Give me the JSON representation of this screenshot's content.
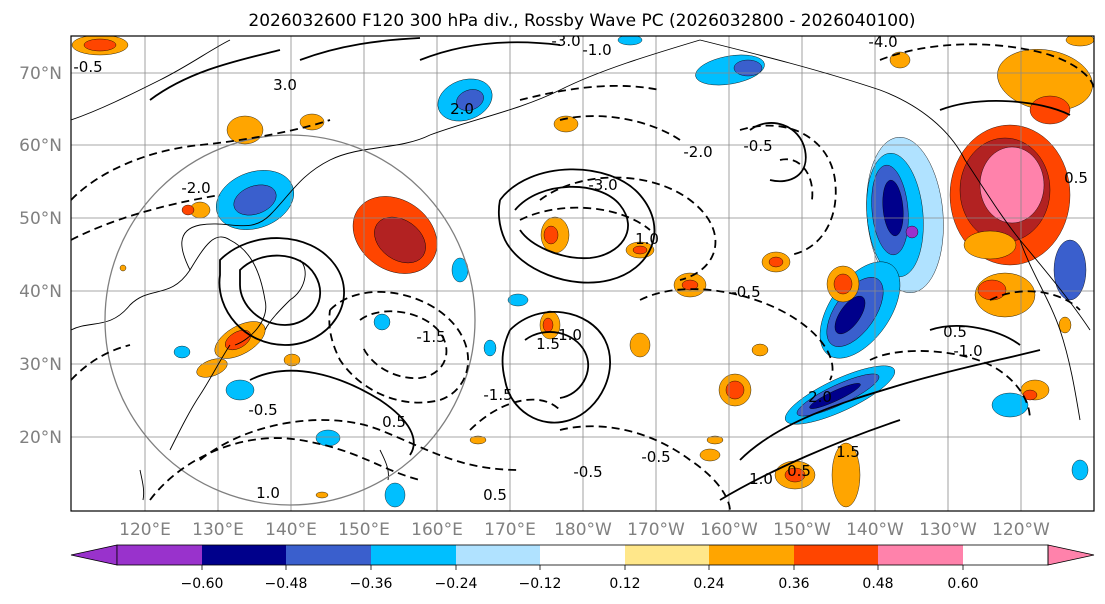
{
  "title": "2026032600 F120 300 hPa div., Rossby Wave PC (2026032800 - 2026040100)",
  "lat_labels": [
    "70°N",
    "60°N",
    "50°N",
    "40°N",
    "30°N",
    "20°N"
  ],
  "lon_labels": [
    "120°E",
    "130°E",
    "140°E",
    "150°E",
    "160°E",
    "170°E",
    "180°W",
    "170°W",
    "160°W",
    "150°W",
    "140°W",
    "130°W",
    "120°W"
  ],
  "colorbar": {
    "ticks": [
      "−0.60",
      "−0.48",
      "−0.36",
      "−0.24",
      "−0.12",
      "0.12",
      "0.24",
      "0.36",
      "0.48",
      "0.60"
    ],
    "colors": [
      "#9932cc",
      "#00008b",
      "#3a5fcd",
      "#00bfff",
      "#b0e2ff",
      "#ffffff",
      "#ffe78a",
      "#ffa500",
      "#ff4500",
      "#b22222",
      "#ff82ab"
    ]
  },
  "contour_labels": {
    "neg": [
      "-3.0",
      "-0.5",
      "-1.5",
      "-2.0",
      "-1.0",
      "-0.5",
      "-0.5",
      "-0.5",
      "-0.5",
      "-3.0",
      "-2.0",
      "-0.5",
      "-1.5",
      "-4.0",
      "-1.0"
    ],
    "pos": [
      "1.0",
      "1.5",
      "1.0",
      "0.5",
      "0.5",
      "1.0",
      "1.5",
      "2.0",
      "0.5",
      "1.0",
      "2.0",
      "3.0",
      "0.5",
      "0.5"
    ]
  },
  "colors": {
    "land": "#1a1a1a",
    "grid": "#8a8a8a",
    "frame": "#000000"
  }
}
